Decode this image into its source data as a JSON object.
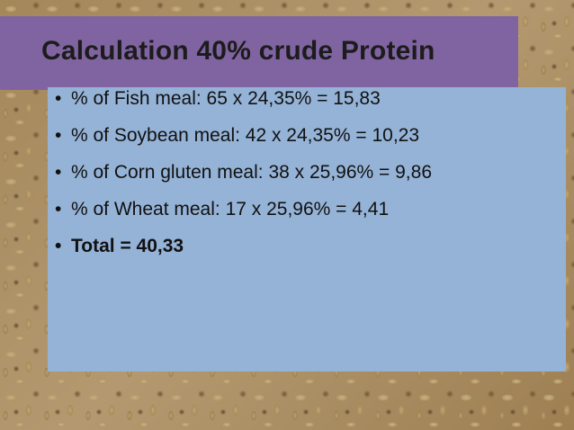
{
  "slide": {
    "title": "Calculation 40% crude Protein",
    "bullet_marker": "•",
    "bullets": [
      {
        "text": "% of Fish meal: 65 x 24,35% = 15,83"
      },
      {
        "text": "% of Soybean meal: 42 x 24,35% = 10,23"
      },
      {
        "text": "% of Corn gluten meal: 38 x 25,96% = 9,86"
      },
      {
        "text": "% of Wheat meal: 17 x 25,96% = 4,41"
      },
      {
        "text": "Total = 40,33"
      }
    ]
  },
  "colors": {
    "title_bar": "#8064a2",
    "content_box": "#95b3d7",
    "text": "#111111"
  }
}
